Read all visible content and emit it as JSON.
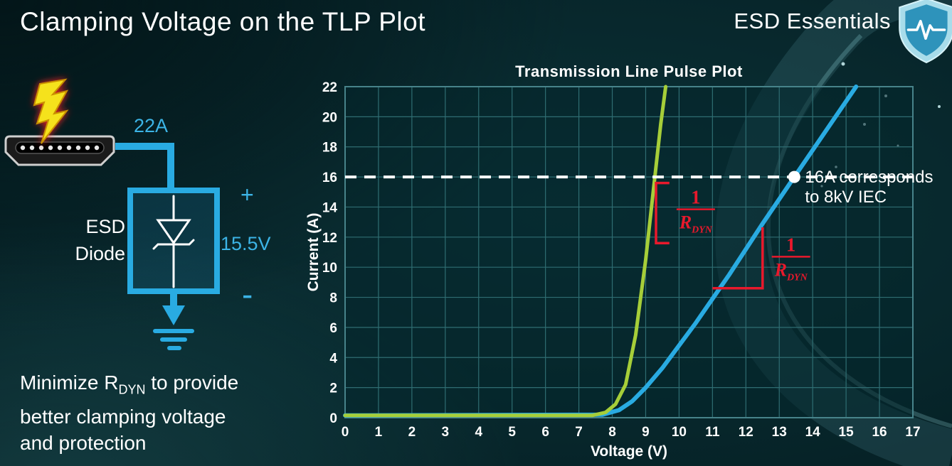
{
  "slide": {
    "title": "Clamping Voltage on the TLP Plot",
    "brand": "ESD Essentials"
  },
  "diagram": {
    "surge_current": "22A",
    "device_line1": "ESD",
    "device_line2": "Diode",
    "plus": "+",
    "minus": "-",
    "clamp_voltage": "15.5V"
  },
  "caption": {
    "line1_pre": "Minimize R",
    "line1_sub": "DYN",
    "line1_post": " to provide",
    "line2": "better clamping voltage",
    "line3": "and protection"
  },
  "chart_data": {
    "type": "line",
    "title": "Transmission Line Pulse Plot",
    "xlabel": "Voltage (V)",
    "ylabel": "Current (A)",
    "xlim": [
      0,
      17
    ],
    "ylim": [
      0,
      22
    ],
    "xticks": [
      0,
      1,
      2,
      3,
      4,
      5,
      6,
      7,
      8,
      9,
      10,
      11,
      12,
      13,
      14,
      15,
      16,
      17
    ],
    "yticks": [
      0,
      2,
      4,
      6,
      8,
      10,
      12,
      14,
      16,
      18,
      20,
      22
    ],
    "grid": true,
    "annotation_color": "#e8192c",
    "series": [
      {
        "id": "blue-curve",
        "color": "#29abe2",
        "width": 6,
        "points": [
          [
            0,
            0.15
          ],
          [
            7.7,
            0.2
          ],
          [
            8.2,
            0.5
          ],
          [
            8.6,
            1.1
          ],
          [
            9.0,
            2.0
          ],
          [
            9.5,
            3.3
          ],
          [
            10.5,
            6.3
          ],
          [
            11.5,
            9.5
          ],
          [
            12.5,
            12.9
          ],
          [
            13.45,
            16
          ],
          [
            14.5,
            19.4
          ],
          [
            15.3,
            22
          ]
        ]
      },
      {
        "id": "green-curve",
        "color": "#a6ce39",
        "width": 5,
        "points": [
          [
            0,
            0.15
          ],
          [
            7.4,
            0.15
          ],
          [
            7.8,
            0.35
          ],
          [
            8.1,
            0.9
          ],
          [
            8.4,
            2.2
          ],
          [
            8.7,
            5.5
          ],
          [
            9.0,
            10.5
          ],
          [
            9.25,
            15.5
          ],
          [
            9.45,
            19.5
          ],
          [
            9.6,
            22
          ]
        ]
      }
    ],
    "reference_line": {
      "y": 16,
      "color": "#ffffff",
      "dash": [
        16,
        11
      ],
      "width": 4
    },
    "marker": {
      "x": 13.45,
      "y": 16,
      "color": "#ffffff",
      "label_line1": "16A corresponds",
      "label_line2": "to 8kV IEC"
    },
    "rdyn_label": {
      "numerator": "1",
      "denominator": "R",
      "denominator_sub": "DYN"
    },
    "slope_markers": [
      {
        "shape": "bracket",
        "x": 9.31,
        "y_top": 15.6,
        "y_bottom": 11.6,
        "tick_dx": 0.4,
        "frac_x": 10.5,
        "frac_y": 13.85
      },
      {
        "shape": "right-angle",
        "x1": 11.0,
        "x2": 12.5,
        "y": 8.6,
        "y_top": 12.65,
        "frac_x": 13.35,
        "frac_y": 10.7
      }
    ]
  }
}
